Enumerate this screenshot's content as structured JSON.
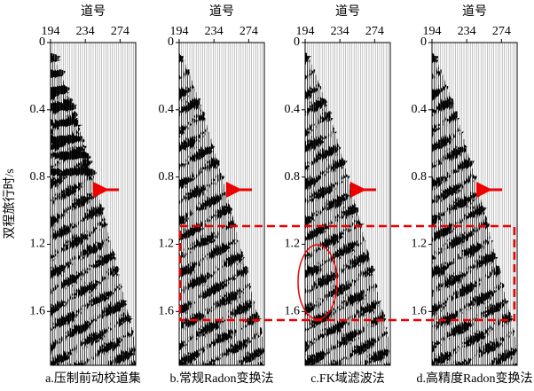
{
  "chart_data": [
    {
      "type": "wiggle",
      "xlabel": "道号",
      "ylabel": "双程旅行时/s",
      "caption": "a.压制前动校道集",
      "xlim": [
        194,
        292
      ],
      "xticks": [
        194,
        234,
        274
      ],
      "ylim": [
        0,
        1.92
      ],
      "yticks": [
        0,
        0.4,
        0.8,
        1.2,
        1.6
      ]
    },
    {
      "type": "wiggle",
      "xlabel": "道号",
      "caption": "b.常规Radon变换法",
      "xlim": [
        194,
        292
      ],
      "xticks": [
        194,
        234,
        274
      ],
      "ylim": [
        0,
        1.92
      ],
      "yticks": [
        0,
        0.4,
        0.8,
        1.2,
        1.6
      ]
    },
    {
      "type": "wiggle",
      "xlabel": "道号",
      "caption": "c.FK域滤波法",
      "xlim": [
        194,
        292
      ],
      "xticks": [
        194,
        234,
        274
      ],
      "ylim": [
        0,
        1.92
      ],
      "yticks": [
        0,
        0.4,
        0.8,
        1.2,
        1.6
      ]
    },
    {
      "type": "wiggle",
      "xlabel": "道号",
      "caption": "d.高精度Radon变换法",
      "xlim": [
        194,
        292
      ],
      "xticks": [
        194,
        234,
        274
      ],
      "ylim": [
        0,
        1.92
      ],
      "yticks": [
        0,
        0.4,
        0.8,
        1.2,
        1.6
      ]
    }
  ]
}
